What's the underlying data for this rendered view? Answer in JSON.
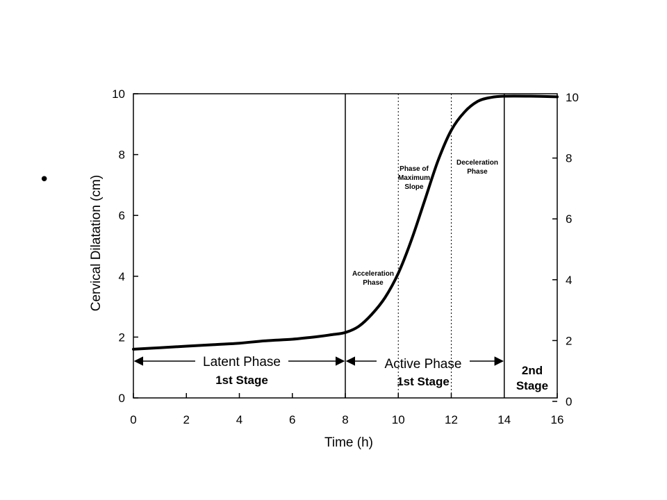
{
  "bullet": "•",
  "chart_data": {
    "type": "line",
    "xlabel": "Time (h)",
    "ylabel": "Cervical Dilatation (cm)",
    "xlim": [
      0,
      16
    ],
    "ylim": [
      0,
      10
    ],
    "x_ticks": [
      0,
      2,
      4,
      6,
      8,
      10,
      12,
      14,
      16
    ],
    "y_ticks": [
      0,
      2,
      4,
      6,
      8,
      10
    ],
    "right_y_ticks": [
      0,
      2,
      4,
      6,
      8,
      10
    ],
    "grid": false,
    "series": [
      {
        "x": [
          0,
          1,
          2,
          3,
          4,
          5,
          6,
          7,
          7.5,
          8,
          8.5,
          9,
          9.5,
          10,
          10.5,
          11,
          11.5,
          12,
          12.5,
          13,
          13.5,
          14,
          15,
          16
        ],
        "y": [
          1.6,
          1.65,
          1.7,
          1.75,
          1.8,
          1.88,
          1.93,
          2.02,
          2.08,
          2.15,
          2.35,
          2.75,
          3.3,
          4.1,
          5.2,
          6.5,
          7.8,
          8.8,
          9.4,
          9.75,
          9.88,
          9.92,
          9.92,
          9.9
        ]
      }
    ],
    "stage_boundaries": [
      8,
      14
    ],
    "phase_boundaries": [
      10,
      12
    ],
    "annotations": {
      "acceleration": [
        "Acceleration",
        "Phase"
      ],
      "max_slope": [
        "Phase of",
        "Maximum",
        "Slope"
      ],
      "deceleration": [
        "Deceleration",
        "Phase"
      ]
    },
    "regions": {
      "latent": {
        "label": "Latent Phase",
        "stage": "1st Stage"
      },
      "active": {
        "label": "Active Phase",
        "stage": "1st Stage"
      },
      "second": {
        "line1": "2nd",
        "line2": "Stage"
      }
    }
  }
}
